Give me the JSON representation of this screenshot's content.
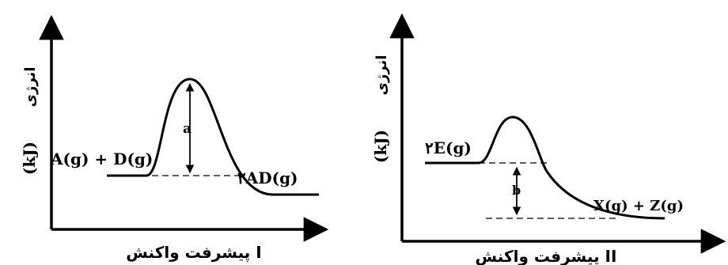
{
  "diagrams": [
    {
      "id": "I",
      "x_axis_label": "پیشرفت واکنش I",
      "y_axis_label_fa": "انرژی",
      "y_axis_label_unit": "(kJ)",
      "reactants": "A(g) + D(g)",
      "products": "۲AD(g)",
      "gap_label": "a"
    },
    {
      "id": "II",
      "x_axis_label": "پیشرفت واکنش II",
      "y_axis_label_fa": "انرژی",
      "y_axis_label_unit": "(kJ)",
      "reactants": "۲E(g)",
      "products": "X(g) + Z(g)",
      "gap_label": "b"
    }
  ]
}
